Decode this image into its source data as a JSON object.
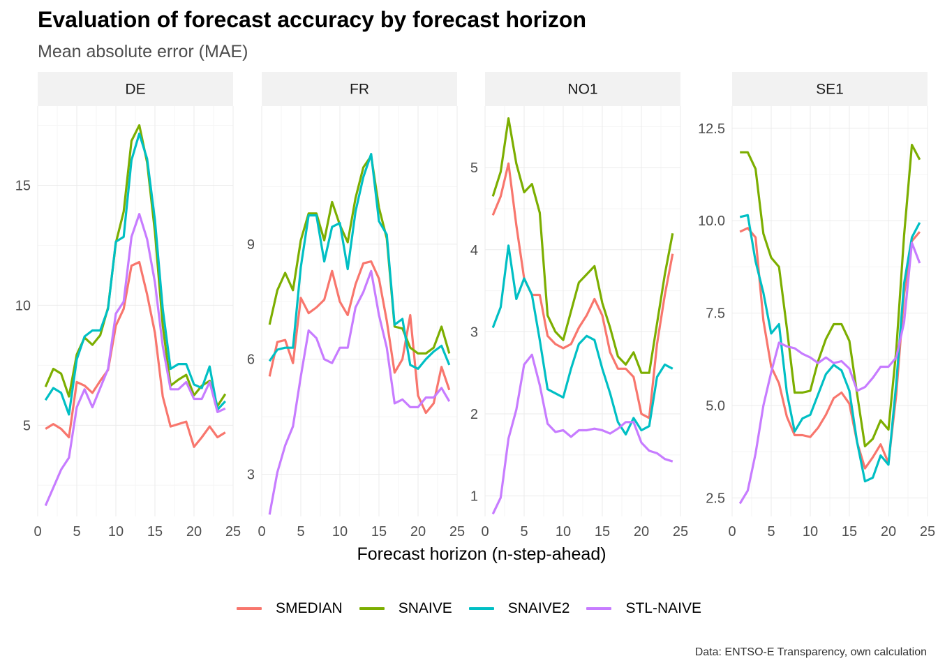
{
  "title": "Evaluation of forecast accuracy by forecast horizon",
  "subtitle": "Mean absolute error (MAE)",
  "caption": "Data: ENTSO-E Transparency, own calculation",
  "colors": {
    "SMEDIAN": "#F8766D",
    "SNAIVE": "#7CAE00",
    "SNAIVE2": "#00BFC4",
    "STL-NAIVE": "#C77CFF",
    "strip_bg": "#f2f2f2",
    "grid_major": "#ebebeb",
    "grid_minor": "#f5f5f5"
  },
  "chart_data": {
    "type": "line",
    "xlabel": "Forecast horizon (n-step-ahead)",
    "ylabel": "",
    "x": [
      1,
      2,
      3,
      4,
      5,
      6,
      7,
      8,
      9,
      10,
      11,
      12,
      13,
      14,
      15,
      16,
      17,
      18,
      19,
      20,
      21,
      22,
      23,
      24
    ],
    "xlim": [
      0,
      25
    ],
    "xticks": [
      0,
      5,
      10,
      15,
      20,
      25
    ],
    "legend_position": "bottom",
    "series_names": [
      "SMEDIAN",
      "SNAIVE",
      "SNAIVE2",
      "STL-NAIVE"
    ],
    "facets": [
      {
        "name": "DE",
        "ylim": [
          1.2,
          18.3
        ],
        "yticks": [
          5,
          10,
          15
        ],
        "ytick_labels": [
          "5",
          "10",
          "15"
        ],
        "series": [
          {
            "name": "SMEDIAN",
            "values": [
              4.85,
              5.05,
              4.85,
              4.5,
              6.8,
              6.65,
              6.35,
              6.85,
              7.3,
              9.15,
              9.85,
              11.65,
              11.8,
              10.45,
              8.85,
              6.2,
              4.95,
              5.05,
              5.15,
              4.1,
              4.5,
              4.95,
              4.5,
              4.7
            ]
          },
          {
            "name": "SNAIVE",
            "values": [
              6.6,
              7.35,
              7.15,
              6.2,
              7.95,
              8.65,
              8.35,
              8.75,
              9.9,
              12.6,
              13.9,
              16.85,
              17.5,
              15.95,
              13.05,
              9.15,
              6.65,
              6.9,
              7.1,
              6.25,
              6.65,
              6.85,
              5.8,
              6.3
            ]
          },
          {
            "name": "SNAIVE2",
            "values": [
              6.05,
              6.55,
              6.35,
              5.45,
              7.75,
              8.7,
              8.95,
              8.95,
              9.85,
              12.65,
              12.85,
              16.05,
              17.15,
              16.1,
              13.55,
              9.85,
              7.35,
              7.55,
              7.55,
              6.7,
              6.55,
              7.45,
              5.65,
              6.0
            ]
          },
          {
            "name": "STL-NAIVE",
            "values": [
              1.65,
              2.4,
              3.15,
              3.65,
              5.75,
              6.5,
              5.75,
              6.55,
              7.35,
              9.65,
              10.15,
              12.85,
              13.8,
              12.75,
              10.95,
              8.3,
              6.5,
              6.5,
              6.8,
              6.1,
              6.1,
              6.8,
              5.55,
              5.7
            ]
          }
        ]
      },
      {
        "name": "FR",
        "ylim": [
          1.9,
          12.6
        ],
        "yticks": [
          3,
          6,
          9
        ],
        "ytick_labels": [
          "3",
          "6",
          "9"
        ],
        "series": [
          {
            "name": "SMEDIAN",
            "values": [
              5.55,
              6.45,
              6.5,
              5.9,
              7.6,
              7.2,
              7.35,
              7.55,
              8.3,
              7.5,
              7.15,
              7.95,
              8.5,
              8.55,
              8.1,
              7.0,
              5.65,
              6.0,
              7.15,
              5.05,
              4.6,
              4.85,
              5.8,
              5.2
            ]
          },
          {
            "name": "SNAIVE",
            "values": [
              6.9,
              7.8,
              8.25,
              7.8,
              9.1,
              9.8,
              9.8,
              9.1,
              10.1,
              9.5,
              9.05,
              10.2,
              11.0,
              11.3,
              9.95,
              9.15,
              6.85,
              6.8,
              6.3,
              6.15,
              6.15,
              6.3,
              6.85,
              6.15
            ]
          },
          {
            "name": "SNAIVE2",
            "values": [
              5.95,
              6.25,
              6.3,
              6.3,
              8.4,
              9.75,
              9.75,
              8.55,
              9.45,
              9.55,
              8.35,
              9.85,
              10.75,
              11.35,
              9.6,
              9.25,
              6.9,
              7.05,
              5.85,
              5.75,
              6.0,
              6.2,
              6.35,
              5.85
            ]
          },
          {
            "name": "STL-NAIVE",
            "values": [
              1.95,
              3.05,
              3.75,
              4.25,
              5.55,
              6.75,
              6.55,
              6.0,
              5.9,
              6.3,
              6.3,
              7.35,
              7.75,
              8.3,
              7.15,
              6.3,
              4.85,
              4.95,
              4.75,
              4.75,
              5.0,
              5.0,
              5.25,
              4.9
            ]
          }
        ]
      },
      {
        "name": "NO1",
        "ylim": [
          0.75,
          5.75
        ],
        "yticks": [
          1,
          2,
          3,
          4,
          5
        ],
        "ytick_labels": [
          "1",
          "2",
          "3",
          "4",
          "5"
        ],
        "series": [
          {
            "name": "SMEDIAN",
            "values": [
              4.42,
              4.65,
              5.05,
              4.3,
              3.65,
              3.45,
              3.45,
              2.95,
              2.85,
              2.8,
              2.85,
              3.05,
              3.2,
              3.4,
              3.2,
              2.75,
              2.55,
              2.55,
              2.45,
              2.0,
              1.95,
              2.85,
              3.45,
              3.95
            ]
          },
          {
            "name": "SNAIVE",
            "values": [
              4.65,
              4.95,
              5.6,
              5.05,
              4.7,
              4.8,
              4.45,
              3.2,
              3.0,
              2.9,
              3.25,
              3.6,
              3.7,
              3.8,
              3.35,
              3.05,
              2.7,
              2.6,
              2.75,
              2.5,
              2.5,
              3.1,
              3.7,
              4.2
            ]
          },
          {
            "name": "SNAIVE2",
            "values": [
              3.05,
              3.3,
              4.05,
              3.4,
              3.65,
              3.45,
              2.9,
              2.3,
              2.25,
              2.2,
              2.55,
              2.85,
              2.95,
              2.9,
              2.55,
              2.25,
              1.9,
              1.75,
              1.95,
              1.8,
              1.85,
              2.45,
              2.6,
              2.55
            ]
          },
          {
            "name": "STL-NAIVE",
            "values": [
              0.78,
              0.98,
              1.7,
              2.05,
              2.6,
              2.72,
              2.35,
              1.88,
              1.78,
              1.8,
              1.72,
              1.8,
              1.8,
              1.82,
              1.8,
              1.76,
              1.82,
              1.9,
              1.9,
              1.65,
              1.55,
              1.52,
              1.45,
              1.42
            ]
          }
        ]
      },
      {
        "name": "SE1",
        "ylim": [
          2.0,
          13.1
        ],
        "yticks": [
          2.5,
          5.0,
          7.5,
          10.0,
          12.5
        ],
        "ytick_labels": [
          "2.5",
          "5.0",
          "7.5",
          "10.0",
          "12.5"
        ],
        "series": [
          {
            "name": "SMEDIAN",
            "values": [
              9.7,
              9.8,
              9.55,
              7.3,
              6.05,
              5.6,
              4.7,
              4.2,
              4.2,
              4.15,
              4.4,
              4.75,
              5.2,
              5.35,
              5.05,
              4.0,
              3.3,
              3.6,
              3.95,
              3.45,
              5.3,
              8.0,
              9.45,
              9.7
            ]
          },
          {
            "name": "SNAIVE",
            "values": [
              11.85,
              11.85,
              11.4,
              9.65,
              9.0,
              8.75,
              7.1,
              5.35,
              5.35,
              5.4,
              6.2,
              6.8,
              7.2,
              7.2,
              6.75,
              5.3,
              3.9,
              4.1,
              4.6,
              4.35,
              6.5,
              9.6,
              12.05,
              11.65
            ]
          },
          {
            "name": "SNAIVE2",
            "values": [
              10.1,
              10.15,
              8.9,
              8.05,
              6.95,
              7.2,
              5.35,
              4.3,
              4.65,
              4.75,
              5.3,
              5.85,
              6.1,
              5.95,
              5.4,
              4.0,
              2.95,
              3.05,
              3.65,
              3.4,
              5.6,
              8.3,
              9.55,
              9.95
            ]
          },
          {
            "name": "STL-NAIVE",
            "values": [
              2.35,
              2.7,
              3.7,
              5.0,
              5.9,
              6.7,
              6.6,
              6.55,
              6.4,
              6.3,
              6.15,
              6.3,
              6.15,
              6.2,
              6.0,
              5.4,
              5.5,
              5.75,
              6.05,
              6.05,
              6.3,
              7.25,
              9.4,
              8.85
            ]
          }
        ]
      }
    ]
  }
}
